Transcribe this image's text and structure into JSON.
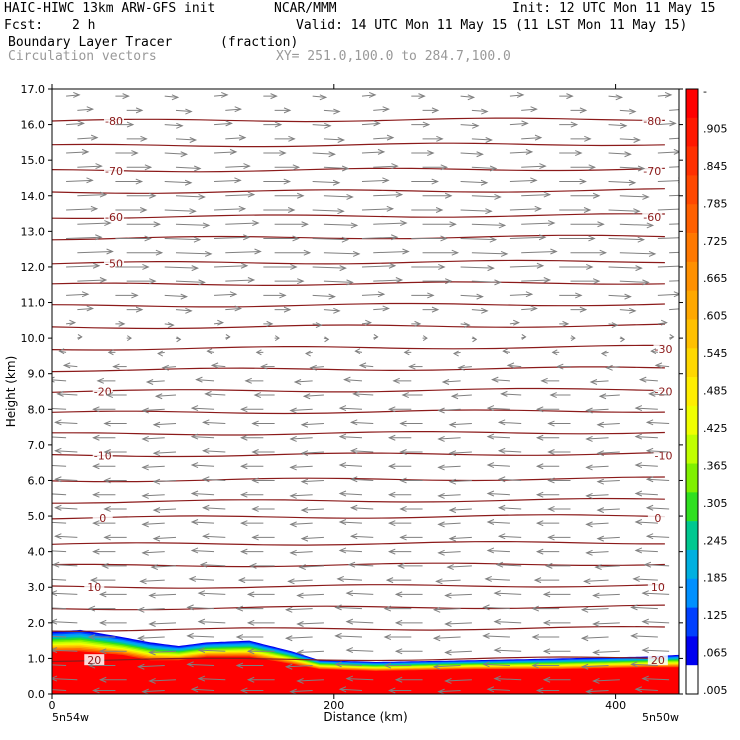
{
  "header": {
    "model": "HAIC-HIWC 13km ARW-GFS init",
    "org": "NCAR/MMM",
    "init": "Init: 12 UTC Mon 11 May 15",
    "fcst_label": "Fcst:",
    "fcst_value": "2 h",
    "valid": "Valid: 14 UTC Mon 11 May 15 (11 LST Mon 11 May 15)",
    "field": "Boundary Layer Tracer",
    "units": "(fraction)",
    "vectors": "Circulation vectors",
    "xy": "XY= 251.0,100.0 to 284.7,100.0"
  },
  "colors": {
    "contour": "#8b1a1a",
    "vector": "#808080",
    "tracer_high": "#ff0000"
  },
  "chart_data": {
    "type": "heatmap",
    "xlabel": "Distance (km)",
    "ylabel": "Height (km)",
    "xlim": [
      0,
      445
    ],
    "ylim": [
      0,
      17
    ],
    "x_ticks": [
      "0",
      "200",
      "400"
    ],
    "x_tick_values": [
      0,
      200,
      400
    ],
    "x_end_labels": [
      "5n54w",
      "5n50w"
    ],
    "y_ticks": [
      "0.0",
      "1.0",
      "2.0",
      "3.0",
      "4.0",
      "5.0",
      "6.0",
      "7.0",
      "8.0",
      "9.0",
      "10.0",
      "11.0",
      "12.0",
      "13.0",
      "14.0",
      "15.0",
      "16.0",
      "17.0"
    ],
    "y_tick_values": [
      0,
      1,
      2,
      3,
      4,
      5,
      6,
      7,
      8,
      9,
      10,
      11,
      12,
      13,
      14,
      15,
      16,
      17
    ],
    "colorbar": {
      "labels": [
        "-",
        ".905",
        ".845",
        ".785",
        ".725",
        ".665",
        ".605",
        ".545",
        ".485",
        ".425",
        ".365",
        ".305",
        ".245",
        ".185",
        ".125",
        ".065",
        ".005"
      ],
      "colors": [
        "#ff0000",
        "#ff1800",
        "#ff3000",
        "#ff4800",
        "#ff6000",
        "#ff7800",
        "#ff9000",
        "#ffa800",
        "#ffc000",
        "#ffd800",
        "#ffee00",
        "#f0ff00",
        "#c0ff00",
        "#80f000",
        "#30e020",
        "#00c890",
        "#00b0e0",
        "#0090ff",
        "#0040ff",
        "#0000f0",
        "#ffffff"
      ]
    },
    "temperature_contours": [
      {
        "label": "-80",
        "height": 16.1,
        "label_x": [
          44,
          426
        ]
      },
      {
        "label": "",
        "height": 15.4,
        "label_x": []
      },
      {
        "label": "-70",
        "height": 14.7,
        "label_x": [
          44,
          426
        ]
      },
      {
        "label": "",
        "height": 14.1,
        "label_x": []
      },
      {
        "label": "-60",
        "height": 13.4,
        "label_x": [
          44,
          426
        ]
      },
      {
        "label": "",
        "height": 12.8,
        "label_x": []
      },
      {
        "label": "-50",
        "height": 12.1,
        "label_x": [
          44
        ]
      },
      {
        "label": "",
        "height": 11.5,
        "label_x": []
      },
      {
        "label": "",
        "height": 10.9,
        "label_x": []
      },
      {
        "label": "",
        "height": 10.3,
        "label_x": []
      },
      {
        "label": "-30",
        "height": 9.7,
        "label_x": [
          434
        ]
      },
      {
        "label": "",
        "height": 9.1,
        "label_x": []
      },
      {
        "label": "-20",
        "height": 8.5,
        "label_x": [
          36,
          434
        ]
      },
      {
        "label": "",
        "height": 7.9,
        "label_x": []
      },
      {
        "label": "",
        "height": 7.3,
        "label_x": []
      },
      {
        "label": "-10",
        "height": 6.7,
        "label_x": [
          36,
          434
        ]
      },
      {
        "label": "",
        "height": 6.0,
        "label_x": []
      },
      {
        "label": "",
        "height": 5.4,
        "label_x": []
      },
      {
        "label": "0",
        "height": 4.95,
        "label_x": [
          36,
          430
        ]
      },
      {
        "label": "",
        "height": 4.2,
        "label_x": []
      },
      {
        "label": "",
        "height": 3.6,
        "label_x": []
      },
      {
        "label": "10",
        "height": 3.0,
        "label_x": [
          30,
          430
        ]
      },
      {
        "label": "",
        "height": 2.4,
        "label_x": []
      },
      {
        "label": "",
        "height": 1.8,
        "label_x": []
      },
      {
        "label": "20",
        "height": 0.95,
        "label_x": [
          30,
          430
        ]
      }
    ],
    "tracer_top": {
      "x": [
        0,
        20,
        50,
        70,
        90,
        110,
        140,
        170,
        190,
        230,
        300,
        360,
        420,
        445
      ],
      "height": [
        1.75,
        1.8,
        1.6,
        1.45,
        1.35,
        1.45,
        1.5,
        1.2,
        0.95,
        0.9,
        0.95,
        1.0,
        1.05,
        1.1
      ]
    },
    "tracer_core_top": {
      "x": [
        0,
        20,
        50,
        70,
        90,
        110,
        140,
        170,
        190,
        230,
        300,
        360,
        420,
        445
      ],
      "height": [
        1.2,
        1.2,
        1.1,
        0.95,
        0.95,
        1.05,
        1.05,
        0.85,
        0.7,
        0.65,
        0.7,
        0.7,
        0.75,
        0.75
      ]
    },
    "wind_layers": [
      {
        "height": 16.8,
        "u": 0.6
      },
      {
        "height": 16.4,
        "u": 0.7
      },
      {
        "height": 16.0,
        "u": 0.8
      },
      {
        "height": 15.6,
        "u": 0.9
      },
      {
        "height": 15.2,
        "u": 1.0
      },
      {
        "height": 14.8,
        "u": 1.1
      },
      {
        "height": 14.4,
        "u": 1.2
      },
      {
        "height": 14.0,
        "u": 1.3
      },
      {
        "height": 13.6,
        "u": 1.4
      },
      {
        "height": 13.2,
        "u": 1.5
      },
      {
        "height": 12.8,
        "u": 1.6
      },
      {
        "height": 12.4,
        "u": 1.6
      },
      {
        "height": 12.0,
        "u": 1.5
      },
      {
        "height": 11.6,
        "u": 1.3
      },
      {
        "height": 11.2,
        "u": 1.0
      },
      {
        "height": 10.8,
        "u": 0.7
      },
      {
        "height": 10.4,
        "u": 0.4
      },
      {
        "height": 10.0,
        "u": 0.2
      },
      {
        "height": 9.6,
        "u": -0.3
      },
      {
        "height": 9.2,
        "u": -0.6
      },
      {
        "height": 8.8,
        "u": -0.8
      },
      {
        "height": 8.4,
        "u": -0.9
      },
      {
        "height": 8.0,
        "u": -1.0
      },
      {
        "height": 7.6,
        "u": -1.0
      },
      {
        "height": 7.2,
        "u": -1.0
      },
      {
        "height": 6.8,
        "u": -1.0
      },
      {
        "height": 6.4,
        "u": -1.0
      },
      {
        "height": 6.0,
        "u": -1.0
      },
      {
        "height": 5.6,
        "u": -1.0
      },
      {
        "height": 5.2,
        "u": -1.0
      },
      {
        "height": 4.8,
        "u": -1.0
      },
      {
        "height": 4.4,
        "u": -1.0
      },
      {
        "height": 4.0,
        "u": -1.0
      },
      {
        "height": 3.6,
        "u": -1.1
      },
      {
        "height": 3.2,
        "u": -1.1
      },
      {
        "height": 2.8,
        "u": -1.2
      },
      {
        "height": 2.4,
        "u": -1.2
      },
      {
        "height": 2.0,
        "u": -1.2
      },
      {
        "height": 1.6,
        "u": -1.2
      },
      {
        "height": 1.2,
        "u": -1.2
      },
      {
        "height": 0.8,
        "u": -1.2
      },
      {
        "height": 0.4,
        "u": -1.2
      },
      {
        "height": 0.1,
        "u": -1.0
      }
    ],
    "wind_columns_x": [
      10,
      45,
      80,
      115,
      150,
      185,
      220,
      255,
      290,
      325,
      360,
      395,
      430
    ]
  }
}
